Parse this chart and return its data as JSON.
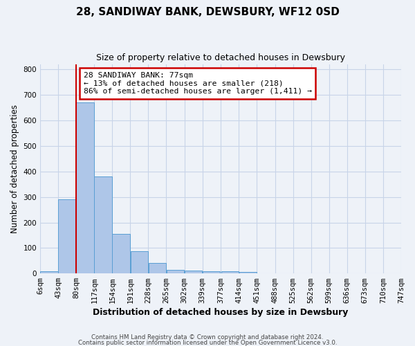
{
  "title": "28, SANDIWAY BANK, DEWSBURY, WF12 0SD",
  "subtitle": "Size of property relative to detached houses in Dewsbury",
  "xlabel": "Distribution of detached houses by size in Dewsbury",
  "ylabel": "Number of detached properties",
  "bar_left_edges": [
    6,
    43,
    80,
    117,
    154,
    191,
    228,
    265,
    302,
    339,
    377,
    414,
    451,
    488,
    525,
    562,
    599,
    636,
    673,
    710
  ],
  "bar_heights": [
    8,
    290,
    670,
    380,
    155,
    88,
    42,
    13,
    12,
    10,
    9,
    6,
    0,
    0,
    0,
    0,
    0,
    0,
    0,
    0
  ],
  "bin_width": 37,
  "bar_color": "#aec6e8",
  "bar_edge_color": "#5a9fd4",
  "grid_color": "#c8d4e8",
  "background_color": "#eef2f8",
  "vline_color": "#cc0000",
  "vline_x": 80,
  "annotation_text": "28 SANDIWAY BANK: 77sqm\n← 13% of detached houses are smaller (218)\n86% of semi-detached houses are larger (1,411) →",
  "annotation_box_color": "#ffffff",
  "annotation_box_edge": "#cc0000",
  "ylim": [
    0,
    820
  ],
  "xlim": [
    6,
    747
  ],
  "tick_labels": [
    "6sqm",
    "43sqm",
    "80sqm",
    "117sqm",
    "154sqm",
    "191sqm",
    "228sqm",
    "265sqm",
    "302sqm",
    "339sqm",
    "377sqm",
    "414sqm",
    "451sqm",
    "488sqm",
    "525sqm",
    "562sqm",
    "599sqm",
    "636sqm",
    "673sqm",
    "710sqm",
    "747sqm"
  ],
  "footer_line1": "Contains HM Land Registry data © Crown copyright and database right 2024.",
  "footer_line2": "Contains public sector information licensed under the Open Government Licence v3.0."
}
